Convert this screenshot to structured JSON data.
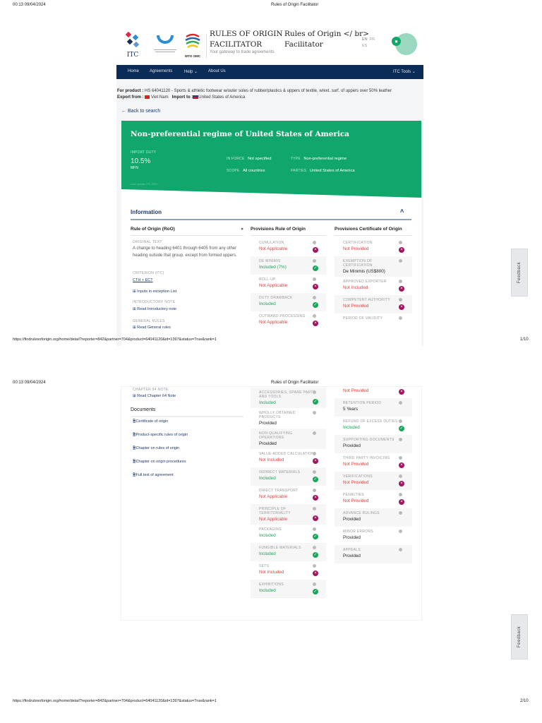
{
  "pages": [
    {
      "datetime": "00:13 09/04/2024",
      "doc_title": "Rules of Origin Facilitator",
      "url": "https://findrulesoforigin.org/home/detail?reporter=842&partner=704&product=64041120&id=1397&status=True&rank=1",
      "page_no": "1/10"
    },
    {
      "datetime": "00:13 09/04/2024",
      "doc_title": "Rules of Origin Facilitator",
      "url": "https://findrulesoforigin.org/home/detail?reporter=842&partner=704&product=64041120&id=1397&status=True&rank=1",
      "page_no": "2/10"
    }
  ],
  "header": {
    "logos": [
      "ITC",
      "WTO OMC"
    ],
    "site_title_1": "RULES OF ORIGIN",
    "site_title_2": "FACILITATOR",
    "tagline": "Your gateway to trade agreements",
    "alt_title_1": "Rules of Origin </ br>",
    "alt_title_2": "Facilitator",
    "languages": [
      "EN",
      "FR",
      "ES"
    ]
  },
  "nav": {
    "items": [
      "Home",
      "Agreements",
      "Help ⌄",
      "About Us"
    ],
    "tools": "ITC Tools ⌄"
  },
  "product": {
    "product_label": "For product :",
    "product_value": "HS 64041120 - Sports & athletic footwear w/outer soles of rubber/plastics & uppers of textile, w/ext. surf. of uppers over 50% leather",
    "export_label": "Export from :",
    "export_value": "Viet Nam",
    "import_label": "Import to :",
    "import_value": "United States of America"
  },
  "back": "← Back to search",
  "banner": {
    "title": "Non-preferential regime of United States of America",
    "import_duty_label": "IMPORT DUTY",
    "import_duty": "10.5%",
    "duty_type": "MFN",
    "in_force_label": "IN FORCE",
    "in_force": "Not specified",
    "scope_label": "SCOPE",
    "scope": "All countries",
    "type_label": "TYPE",
    "type": "Non-preferential regime",
    "parties_label": "PARTIES",
    "parties": "United States of America",
    "last_update": "Last update ITC 2020"
  },
  "information": {
    "title": "Information",
    "col1": "Rule of Origin (RoO)",
    "col2": "Provisions Rule of Origin",
    "col3": "Provisions Certificate of Origin"
  },
  "roo": {
    "original_text_label": "ORIGINAL TEXT",
    "original_text": "A change to heading 6401 through 6405 from any other heading outside that group, except from formed uppers.",
    "criterion_label": "CRITERION (ITC)",
    "criterion": "CTH + ECT",
    "inputs_link": "Inputs in exception List",
    "intro_label": "INTRODUCTORY NOTE",
    "intro_link": "Read Introductory note",
    "general_label": "GENERAL RULES",
    "general_link": "Read General rules",
    "chapter_label": "CHAPTER 64 NOTE",
    "chapter_link": "Read Chapter 64 Note"
  },
  "documents": {
    "title": "Documents",
    "items": [
      "Certificate of origin",
      "Product-specific rules of origin",
      "Chapter on rules of origin",
      "Chapter on origin procedures",
      "Full text of agreement"
    ]
  },
  "provisions_roo": {
    "page1": [
      {
        "label": "CUMULATION",
        "value": "Not Applicable",
        "status": "no"
      },
      {
        "label": "DE MINIMIS",
        "value": "Included (7%)",
        "status": "yes"
      },
      {
        "label": "ROLL-UP",
        "value": "Not Applicable",
        "status": "no"
      },
      {
        "label": "DUTY DRAWBACK",
        "value": "Included",
        "status": "yes"
      },
      {
        "label": "OUTWARD PROCESSING",
        "value": "Not Applicable",
        "status": "no"
      }
    ],
    "page2": [
      {
        "label": "ACCESSORIES, SPARE PARTS AND TOOLS",
        "value": "Included",
        "status": "yes"
      },
      {
        "label": "WHOLLY OBTAINED PRODUCTS",
        "value": "Provided",
        "status": "none"
      },
      {
        "label": "NON-QUALIFYING OPERATIONS",
        "value": "Provided",
        "status": "none"
      },
      {
        "label": "VALUE-ADDED CALCULATION",
        "value": "Not Included",
        "status": "no"
      },
      {
        "label": "INDIRECT MATERIALS",
        "value": "Included",
        "status": "yes"
      },
      {
        "label": "DIRECT TRANSPORT",
        "value": "Not Applicable",
        "status": "no"
      },
      {
        "label": "PRINCIPLE OF TERRITORIALITY",
        "value": "Not Applicable",
        "status": "no"
      },
      {
        "label": "PACKAGING",
        "value": "Included",
        "status": "yes"
      },
      {
        "label": "FUNGIBLE MATERIALS",
        "value": "Included",
        "status": "yes"
      },
      {
        "label": "SETS",
        "value": "Not Included",
        "status": "no"
      },
      {
        "label": "EXHIBITIONS",
        "value": "Included",
        "status": "yes"
      }
    ]
  },
  "provisions_cert": {
    "page1": [
      {
        "label": "CERTIFICATION",
        "value": "Not Provided",
        "status": "no"
      },
      {
        "label": "EXEMPTION OF CERTIFICATION",
        "value": "De Minimis (US$800)",
        "status": "none"
      },
      {
        "label": "APPROVED EXPORTER",
        "value": "Not Included",
        "status": "no"
      },
      {
        "label": "COMPETENT AUTHORITY",
        "value": "Not Provided",
        "status": "no"
      },
      {
        "label": "PERIOD OF VALIDITY",
        "value": "",
        "status": "cont"
      }
    ],
    "page2": [
      {
        "label": "",
        "value": "Not Provided",
        "status": "no"
      },
      {
        "label": "RETENTION PERIOD",
        "value": "5 Years",
        "status": "none"
      },
      {
        "label": "REFUND OF EXCESS DUTIES",
        "value": "Included",
        "status": "yes"
      },
      {
        "label": "SUPPORTING DOCUMENTS",
        "value": "Provided",
        "status": "none"
      },
      {
        "label": "THIRD PARTY INVOICING",
        "value": "Not Provided",
        "status": "no"
      },
      {
        "label": "VERIFICATIONS",
        "value": "Not Provided",
        "status": "no"
      },
      {
        "label": "PENALTIES",
        "value": "Not Provided",
        "status": "no"
      },
      {
        "label": "ADVANCE RULINGS",
        "value": "Provided",
        "status": "none"
      },
      {
        "label": "MINOR ERRORS",
        "value": "Provided",
        "status": "none"
      },
      {
        "label": "APPEALS",
        "value": "Provided",
        "status": "none"
      }
    ]
  },
  "feedback": "Feedback",
  "colors": {
    "brand_green": "#11a66b",
    "nav": "#0b2c57",
    "included": "#19a55a",
    "not": "#a0155f",
    "red_text": "#d64545"
  }
}
